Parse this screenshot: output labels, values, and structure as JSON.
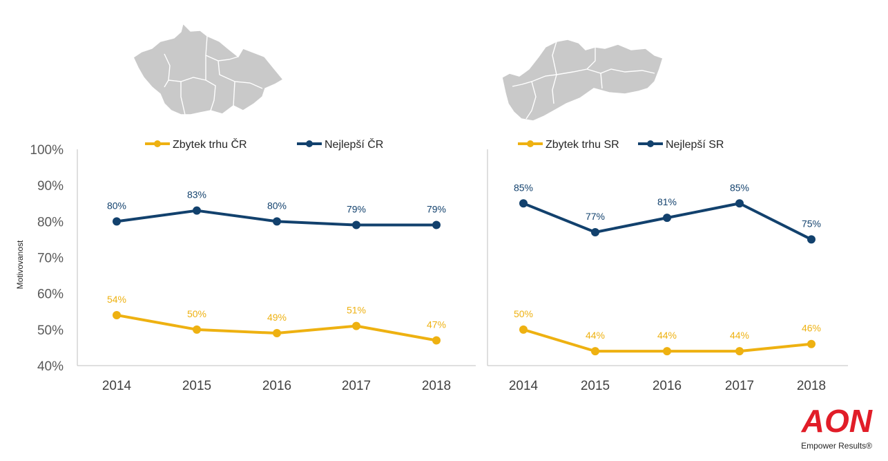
{
  "colors": {
    "series_rest": "#EEB111",
    "series_best": "#12416D",
    "axis": "#bfbfbf",
    "logo": "#E11D28"
  },
  "y_axis": {
    "title": "Motivovanost",
    "ticks": [
      "100%",
      "90%",
      "80%",
      "70%",
      "60%",
      "50%",
      "40%"
    ]
  },
  "chart_data": [
    {
      "type": "line",
      "title": "",
      "xlabel": "",
      "ylabel": "Motivovanost",
      "ylim": [
        40,
        100
      ],
      "categories": [
        "2014",
        "2015",
        "2016",
        "2017",
        "2018"
      ],
      "series": [
        {
          "name": "Zbytek trhu ČR",
          "values": [
            54,
            50,
            49,
            51,
            47
          ],
          "labels": [
            "54%",
            "50%",
            "49%",
            "51%",
            "47%"
          ]
        },
        {
          "name": "Nejlepší ČR",
          "values": [
            80,
            83,
            80,
            79,
            79
          ],
          "labels": [
            "80%",
            "83%",
            "80%",
            "79%",
            "79%"
          ]
        }
      ]
    },
    {
      "type": "line",
      "title": "",
      "xlabel": "",
      "ylabel": "",
      "ylim": [
        40,
        100
      ],
      "categories": [
        "2014",
        "2015",
        "2016",
        "2017",
        "2018"
      ],
      "series": [
        {
          "name": "Zbytek trhu SR",
          "values": [
            50,
            44,
            44,
            44,
            46
          ],
          "labels": [
            "50%",
            "44%",
            "44%",
            "44%",
            "46%"
          ]
        },
        {
          "name": "Nejlepší SR",
          "values": [
            85,
            77,
            81,
            85,
            75
          ],
          "labels": [
            "85%",
            "77%",
            "81%",
            "85%",
            "75%"
          ]
        }
      ]
    }
  ],
  "logo": {
    "brand": "AON",
    "tagline": "Empower Results®"
  }
}
